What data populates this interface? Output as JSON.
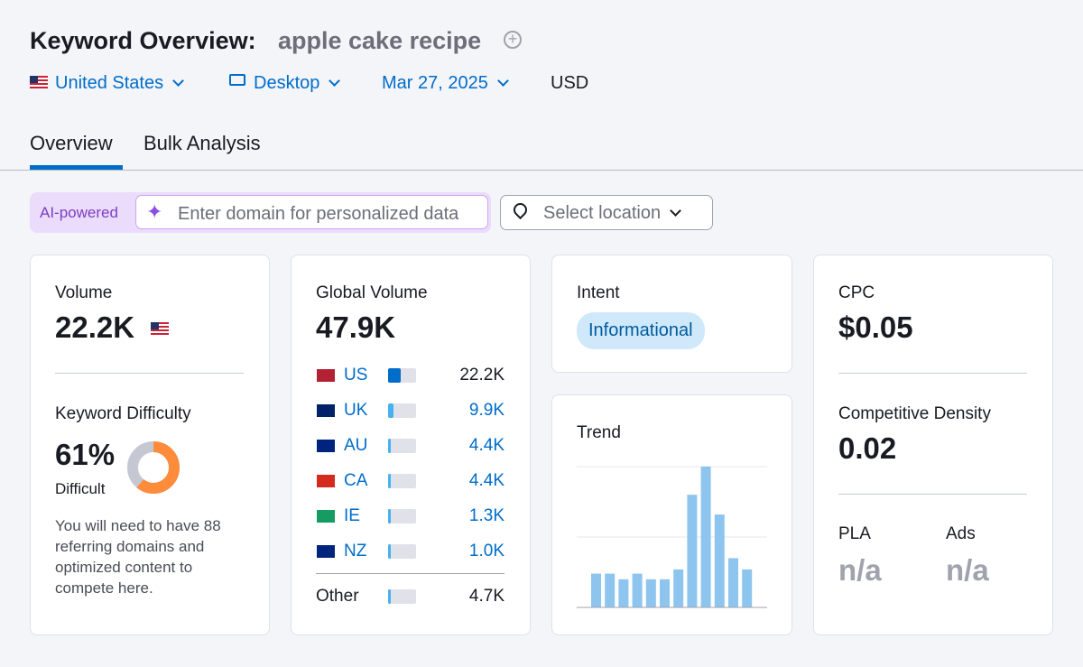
{
  "header": {
    "title": "Keyword Overview:",
    "keyword": "apple cake recipe",
    "filters": [
      "United States",
      "Desktop",
      "Mar 27, 2025",
      "USD"
    ]
  },
  "tabs": [
    "Overview",
    "Bulk Analysis"
  ],
  "ai": {
    "badge": "AI-powered",
    "placeholder": "Enter domain for personalized data",
    "location": "Select location"
  },
  "volume": {
    "label": "Volume",
    "value": "22.2K"
  },
  "difficulty": {
    "label": "Keyword Difficulty",
    "value": 61,
    "value_label": "61%",
    "level": "Difficult",
    "note": "You will need to have 88 referring domains and optimized content to compete here."
  },
  "global_volume": {
    "label": "Global Volume",
    "value": 47900,
    "value_label": "47.9K",
    "rows": [
      {
        "country": "US",
        "value": 22200,
        "value_label": "22.2K"
      },
      {
        "country": "UK",
        "value": 9900,
        "value_label": "9.9K"
      },
      {
        "country": "AU",
        "value": 4400,
        "value_label": "4.4K"
      },
      {
        "country": "CA",
        "value": 4400,
        "value_label": "4.4K"
      },
      {
        "country": "IE",
        "value": 1300,
        "value_label": "1.3K"
      },
      {
        "country": "NZ",
        "value": 1000,
        "value_label": "1.0K"
      }
    ],
    "other": {
      "country": "Other",
      "value": 4700,
      "value_label": "4.7K"
    }
  },
  "intent": {
    "label": "Intent",
    "value": "Informational"
  },
  "trend": {
    "label": "Trend",
    "values": [
      24,
      24,
      20,
      24,
      20,
      20,
      27,
      80,
      100,
      66,
      35,
      27
    ],
    "ylim": [
      0,
      100
    ]
  },
  "cpc": {
    "label": "CPC",
    "value": "$0.05"
  },
  "density": {
    "label": "Competitive Density",
    "value": "0.02"
  },
  "pla": {
    "label": "PLA",
    "value": "n/a"
  },
  "ads": {
    "label": "Ads",
    "value": "n/a"
  }
}
